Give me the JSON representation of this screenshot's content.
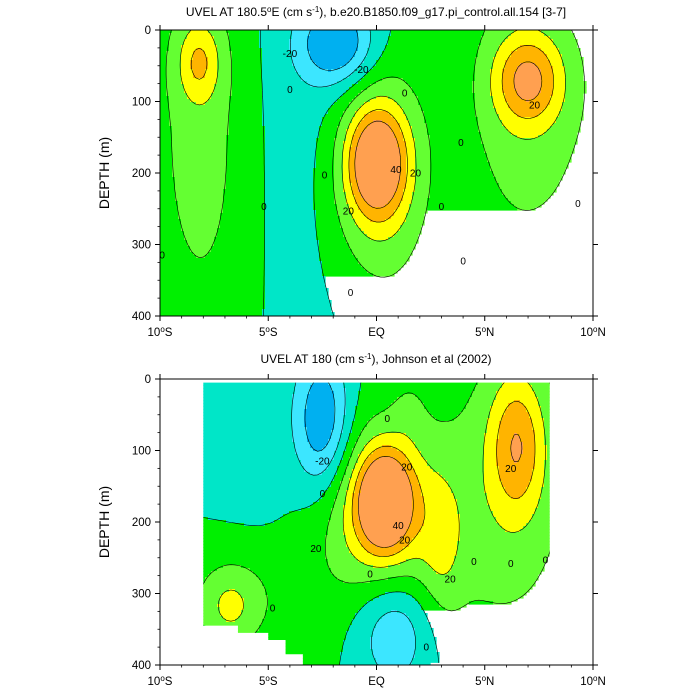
{
  "colors": {
    "lt_m40": "#00b0f0",
    "lt_m20": "#3ce6ff",
    "lt_0": "#00e6c8",
    "lt_20": "#00f000",
    "lt_40": "#64ff32",
    "lt_60": "#ffff00",
    "lt_80": "#ffb400",
    "ge_80": "#ffa050",
    "line": "#000000"
  },
  "chart_data": [
    {
      "type": "contour",
      "title_prefix": "UVEL AT 180.5",
      "title_deg": "o",
      "title_mid": "E (cm s",
      "title_exp": "-1",
      "title_suffix": "), b.e20.B1850.f09_g17.pi_control.all.154 [3-7]",
      "ylabel": "DEPTH (m)",
      "xlim": [
        -10,
        10
      ],
      "ylim": [
        400,
        0
      ],
      "x_ticks": [
        {
          "value": -10,
          "num": "10",
          "deg": "o",
          "hemi": "S"
        },
        {
          "value": -5,
          "num": "5",
          "deg": "o",
          "hemi": "S"
        },
        {
          "value": 0,
          "num": "",
          "deg": "",
          "hemi": "EQ"
        },
        {
          "value": 5,
          "num": "5",
          "deg": "o",
          "hemi": "N"
        },
        {
          "value": 10,
          "num": "10",
          "deg": "o",
          "hemi": "N"
        }
      ],
      "y_ticks": [
        0,
        100,
        200,
        300,
        400
      ],
      "features": [
        {
          "x": 0.0,
          "y": 185,
          "amp": 82,
          "sx": 0.9,
          "sy": 50
        },
        {
          "x": 0.0,
          "y": 190,
          "amp": 35,
          "sx": 1.5,
          "sy": 95
        },
        {
          "x": 0.3,
          "y": 230,
          "amp": 20,
          "sx": 2.2,
          "sy": 130
        },
        {
          "x": 7.0,
          "y": 70,
          "amp": 62,
          "sx": 1.1,
          "sy": 45
        },
        {
          "x": 6.8,
          "y": 110,
          "amp": 30,
          "sx": 2.6,
          "sy": 160
        },
        {
          "x": -8.2,
          "y": 45,
          "amp": 42,
          "sx": 0.7,
          "sy": 40
        },
        {
          "x": -8.0,
          "y": 150,
          "amp": 28,
          "sx": 1.8,
          "sy": 220
        },
        {
          "x": -1.8,
          "y": 20,
          "amp": -60,
          "sx": 1.2,
          "sy": 40
        },
        {
          "x": -3.2,
          "y": 140,
          "amp": -14,
          "sx": 2.2,
          "sy": 230
        },
        {
          "x": 3.4,
          "y": 200,
          "amp": -10,
          "sx": 1.4,
          "sy": 180
        }
      ],
      "contour_labels": [
        {
          "x": -4.0,
          "y": 83,
          "text": "0"
        },
        {
          "x": -5.2,
          "y": 247,
          "text": "0"
        },
        {
          "x": -9.9,
          "y": 315,
          "text": "0"
        },
        {
          "x": -1.2,
          "y": 367,
          "text": "0"
        },
        {
          "x": -2.4,
          "y": 203,
          "text": "0"
        },
        {
          "x": 1.3,
          "y": 88,
          "text": "0"
        },
        {
          "x": 3.9,
          "y": 157,
          "text": "0"
        },
        {
          "x": 3.0,
          "y": 247,
          "text": "0"
        },
        {
          "x": 4.0,
          "y": 323,
          "text": "0"
        },
        {
          "x": 9.3,
          "y": 243,
          "text": "0"
        },
        {
          "x": -4.0,
          "y": 33,
          "text": "-20"
        },
        {
          "x": -0.7,
          "y": 55,
          "text": "-20"
        },
        {
          "x": 7.3,
          "y": 105,
          "text": "20"
        },
        {
          "x": 1.8,
          "y": 200,
          "text": "20"
        },
        {
          "x": -1.3,
          "y": 253,
          "text": "20"
        },
        {
          "x": 0.9,
          "y": 195,
          "text": "40"
        }
      ]
    },
    {
      "type": "contour",
      "title_prefix": "UVEL AT 180 (cm s",
      "title_deg": "",
      "title_mid": "",
      "title_exp": "-1",
      "title_suffix": "), Johnson et al (2002)",
      "ylabel": "DEPTH (m)",
      "xlim": [
        -10,
        10
      ],
      "ylim": [
        400,
        0
      ],
      "x_ticks": [
        {
          "value": -10,
          "num": "10",
          "deg": "o",
          "hemi": "S"
        },
        {
          "value": -5,
          "num": "5",
          "deg": "o",
          "hemi": "S"
        },
        {
          "value": 0,
          "num": "",
          "deg": "",
          "hemi": "EQ"
        },
        {
          "value": 5,
          "num": "5",
          "deg": "o",
          "hemi": "N"
        },
        {
          "value": 10,
          "num": "10",
          "deg": "o",
          "hemi": "N"
        }
      ],
      "y_ticks": [
        0,
        100,
        200,
        300,
        400
      ],
      "data_extent": {
        "x_start": -8.0,
        "x_end": 8.0,
        "top_depth": 5,
        "bottom_profile": [
          [
            -8.0,
            345
          ],
          [
            -6.4,
            345
          ],
          [
            -6.4,
            355
          ],
          [
            -5.0,
            355
          ],
          [
            -5.0,
            365
          ],
          [
            -4.2,
            365
          ],
          [
            -4.2,
            385
          ],
          [
            -3.4,
            385
          ],
          [
            -3.4,
            400
          ],
          [
            2.5,
            400
          ],
          [
            2.5,
            397
          ],
          [
            4.3,
            397
          ],
          [
            4.3,
            400
          ],
          [
            5.7,
            400
          ],
          [
            5.7,
            385
          ],
          [
            8.0,
            385
          ]
        ]
      },
      "features": [
        {
          "x": 0.4,
          "y": 170,
          "amp": 90,
          "sx": 0.8,
          "sy": 45
        },
        {
          "x": 0.3,
          "y": 175,
          "amp": 40,
          "sx": 1.6,
          "sy": 70
        },
        {
          "x": 0.0,
          "y": 210,
          "amp": 28,
          "sx": 2.4,
          "sy": 110
        },
        {
          "x": 3.0,
          "y": 240,
          "amp": 22,
          "sx": 0.7,
          "sy": 70
        },
        {
          "x": 6.5,
          "y": 90,
          "amp": 55,
          "sx": 0.9,
          "sy": 70
        },
        {
          "x": 6.0,
          "y": 160,
          "amp": 30,
          "sx": 2.4,
          "sy": 160
        },
        {
          "x": -6.8,
          "y": 320,
          "amp": 32,
          "sx": 1.0,
          "sy": 40
        },
        {
          "x": -6.0,
          "y": 300,
          "amp": 18,
          "sx": 2.0,
          "sy": 60
        },
        {
          "x": -2.5,
          "y": 60,
          "amp": -60,
          "sx": 0.9,
          "sy": 70
        },
        {
          "x": 0.8,
          "y": 350,
          "amp": -45,
          "sx": 1.3,
          "sy": 60
        },
        {
          "x": -5.0,
          "y": 150,
          "amp": -8,
          "sx": 2.0,
          "sy": 150
        },
        {
          "x": 1.5,
          "y": 40,
          "amp": 10,
          "sx": 0.6,
          "sy": 40
        }
      ],
      "contour_labels": [
        {
          "x": -2.5,
          "y": 160,
          "text": "0"
        },
        {
          "x": -0.3,
          "y": 273,
          "text": "0"
        },
        {
          "x": -4.8,
          "y": 320,
          "text": "0"
        },
        {
          "x": 0.5,
          "y": 55,
          "text": "0"
        },
        {
          "x": 2.3,
          "y": 375,
          "text": "0"
        },
        {
          "x": 4.5,
          "y": 255,
          "text": "0"
        },
        {
          "x": 6.2,
          "y": 258,
          "text": "0"
        },
        {
          "x": 7.8,
          "y": 253,
          "text": "0"
        },
        {
          "x": -2.5,
          "y": 115,
          "text": "-20"
        },
        {
          "x": 1.4,
          "y": 123,
          "text": "20"
        },
        {
          "x": 6.2,
          "y": 125,
          "text": "20"
        },
        {
          "x": -2.8,
          "y": 237,
          "text": "20"
        },
        {
          "x": 1.3,
          "y": 225,
          "text": "20"
        },
        {
          "x": 3.4,
          "y": 280,
          "text": "20"
        },
        {
          "x": 1.0,
          "y": 205,
          "text": "40"
        }
      ]
    }
  ]
}
